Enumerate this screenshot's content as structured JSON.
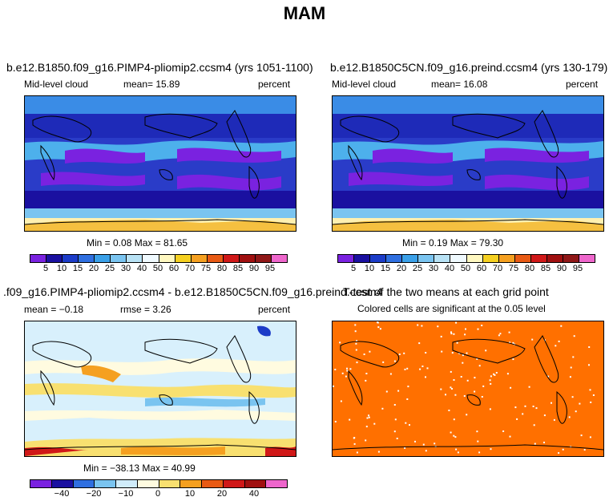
{
  "title": "MAM",
  "panels": [
    {
      "title": "b.e12.B1850.f09_g16.PIMP4-pliomip2.ccsm4 (yrs 1051-1100)",
      "left_label": "Mid-level cloud",
      "mean_text": "mean=   15.89",
      "units": "percent",
      "minmax": "Min =    0.08 Max =   81.65"
    },
    {
      "title": "b.e12.B1850C5CN.f09_g16.preind.ccsm4 (yrs 130-179)",
      "left_label": "Mid-level cloud",
      "mean_text": "mean=   16.08",
      "units": "percent",
      "minmax": "Min =    0.19 Max =   79.30"
    },
    {
      "title": ".f09_g16.PIMP4-pliomip2.ccsm4 - b.e12.B1850C5CN.f09_g16.preind.ccsm4",
      "left_label": "mean =  −0.18",
      "mean_text": "rmse =    3.26",
      "units": "percent",
      "minmax": "Min = −38.13 Max =   40.99"
    },
    {
      "title": "T-test of the two means at each grid point",
      "subtitle": "Colored cells are significant at the 0.05 level"
    }
  ],
  "colorbar_top": {
    "ticks": [
      "5",
      "10",
      "15",
      "20",
      "25",
      "30",
      "40",
      "50",
      "60",
      "70",
      "75",
      "80",
      "85",
      "90",
      "95"
    ],
    "colors": [
      "#7a22e0",
      "#1a10a0",
      "#1c3cc8",
      "#2f6fe0",
      "#3aa0e8",
      "#7ac4f0",
      "#b8e2f5",
      "#f0faff",
      "#fff8c0",
      "#f5d020",
      "#f5a020",
      "#e85a14",
      "#d01818",
      "#a01010",
      "#901818",
      "#ee66cc"
    ]
  },
  "colorbar_bottom": {
    "ticks": [
      "−40",
      "−20",
      "−10",
      "0",
      "10",
      "20",
      "40"
    ],
    "colors": [
      "#7a22e0",
      "#1a10a0",
      "#2f6fe0",
      "#7ac4f0",
      "#d0ecfa",
      "#fffbe0",
      "#f8e070",
      "#f5a020",
      "#e85a14",
      "#d01818",
      "#a01010",
      "#ee66cc"
    ]
  },
  "chart_data": [
    {
      "type": "heatmap",
      "title": "b.e12.B1850.f09_g16.PIMP4-pliomip2.ccsm4 (yrs 1051-1100)",
      "variable": "Mid-level cloud",
      "units": "percent",
      "mean": 15.89,
      "min": 0.08,
      "max": 81.65,
      "colorbar_levels": [
        5,
        10,
        15,
        20,
        25,
        30,
        40,
        50,
        60,
        70,
        75,
        80,
        85,
        90,
        95
      ]
    },
    {
      "type": "heatmap",
      "title": "b.e12.B1850C5CN.f09_g16.preind.ccsm4 (yrs 130-179)",
      "variable": "Mid-level cloud",
      "units": "percent",
      "mean": 16.08,
      "min": 0.19,
      "max": 79.3,
      "colorbar_levels": [
        5,
        10,
        15,
        20,
        25,
        30,
        40,
        50,
        60,
        70,
        75,
        80,
        85,
        90,
        95
      ]
    },
    {
      "type": "heatmap",
      "title": ".f09_g16.PIMP4-pliomip2.ccsm4 - b.e12.B1850C5CN.f09_g16.preind.ccsm4",
      "units": "percent",
      "mean": -0.18,
      "rmse": 3.26,
      "min": -38.13,
      "max": 40.99,
      "colorbar_levels": [
        -40,
        -20,
        -10,
        0,
        10,
        20,
        40
      ]
    },
    {
      "type": "heatmap",
      "title": "T-test of the two means at each grid point",
      "subtitle": "Colored cells are significant at the 0.05 level",
      "significance_level": 0.05,
      "fill_color": "#ff7000"
    }
  ]
}
